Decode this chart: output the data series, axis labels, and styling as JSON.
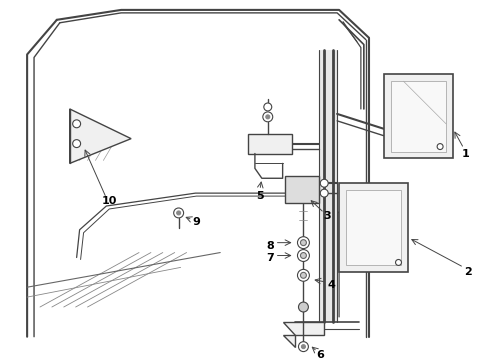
{
  "bg_color": "#ffffff",
  "line_color": "#444444",
  "text_color": "#000000",
  "fig_width": 4.9,
  "fig_height": 3.6,
  "dpi": 100
}
